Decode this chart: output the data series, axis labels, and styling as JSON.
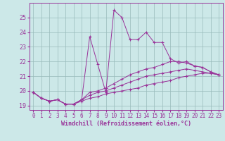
{
  "xlabel": "Windchill (Refroidissement éolien,°C)",
  "bg_color": "#cce8e8",
  "line_color": "#993399",
  "grid_color": "#99bbbb",
  "xlim": [
    -0.5,
    23.5
  ],
  "ylim": [
    18.7,
    26.0
  ],
  "yticks": [
    19,
    20,
    21,
    22,
    23,
    24,
    25
  ],
  "xticks": [
    0,
    1,
    2,
    3,
    4,
    5,
    6,
    7,
    8,
    9,
    10,
    11,
    12,
    13,
    14,
    15,
    16,
    17,
    18,
    19,
    20,
    21,
    22,
    23
  ],
  "lines": [
    {
      "x": [
        0,
        1,
        2,
        3,
        4,
        5,
        6,
        7,
        8,
        9,
        10,
        11,
        12,
        13,
        14,
        15,
        16,
        17,
        18,
        19,
        20,
        21,
        22,
        23
      ],
      "y": [
        19.9,
        19.5,
        19.3,
        19.4,
        19.1,
        19.1,
        19.4,
        23.7,
        21.8,
        19.9,
        25.5,
        25.0,
        23.5,
        23.5,
        24.0,
        23.3,
        23.3,
        22.2,
        21.9,
        22.0,
        21.7,
        21.6,
        21.3,
        21.1
      ]
    },
    {
      "x": [
        0,
        1,
        2,
        3,
        4,
        5,
        6,
        7,
        8,
        9,
        10,
        11,
        12,
        13,
        14,
        15,
        16,
        17,
        18,
        19,
        20,
        21,
        22,
        23
      ],
      "y": [
        19.9,
        19.5,
        19.3,
        19.4,
        19.1,
        19.1,
        19.4,
        19.9,
        20.0,
        20.2,
        20.5,
        20.8,
        21.1,
        21.3,
        21.5,
        21.6,
        21.8,
        22.0,
        22.0,
        21.9,
        21.7,
        21.6,
        21.3,
        21.1
      ]
    },
    {
      "x": [
        0,
        1,
        2,
        3,
        4,
        5,
        6,
        7,
        8,
        9,
        10,
        11,
        12,
        13,
        14,
        15,
        16,
        17,
        18,
        19,
        20,
        21,
        22,
        23
      ],
      "y": [
        19.9,
        19.5,
        19.3,
        19.4,
        19.1,
        19.1,
        19.4,
        19.7,
        19.9,
        20.0,
        20.2,
        20.4,
        20.6,
        20.8,
        21.0,
        21.1,
        21.2,
        21.3,
        21.4,
        21.5,
        21.4,
        21.3,
        21.2,
        21.1
      ]
    },
    {
      "x": [
        0,
        1,
        2,
        3,
        4,
        5,
        6,
        7,
        8,
        9,
        10,
        11,
        12,
        13,
        14,
        15,
        16,
        17,
        18,
        19,
        20,
        21,
        22,
        23
      ],
      "y": [
        19.9,
        19.5,
        19.3,
        19.4,
        19.1,
        19.1,
        19.3,
        19.5,
        19.6,
        19.8,
        19.9,
        20.0,
        20.1,
        20.2,
        20.4,
        20.5,
        20.6,
        20.7,
        20.9,
        21.0,
        21.1,
        21.2,
        21.2,
        21.1
      ]
    }
  ]
}
